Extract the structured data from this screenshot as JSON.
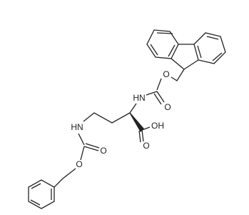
{
  "atoms": {
    "ester_o_top": "O",
    "carbonyl_o_top": "O",
    "nh_top": "HN",
    "acid_o": "O",
    "acid_oh": "OH",
    "nh_side": "HN",
    "carbonyl_o_side": "O",
    "ester_o_side": "O"
  }
}
